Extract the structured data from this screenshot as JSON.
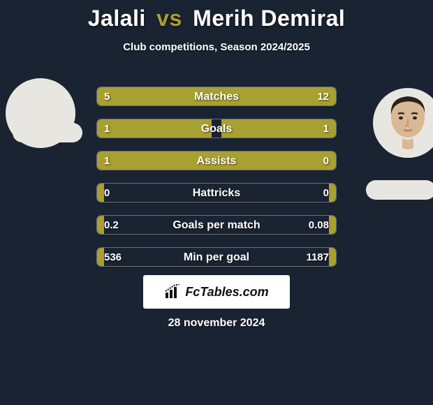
{
  "colors": {
    "background": "#1a2332",
    "accent": "#a8a030",
    "bar_border": "#6d6d6d",
    "text": "#ffffff",
    "brand_bg": "#ffffff",
    "brand_text": "#111111",
    "avatar_bg": "#e8e6e0"
  },
  "title": {
    "player1": "Jalali",
    "vs": "vs",
    "player2": "Merih Demiral"
  },
  "subtitle": "Club competitions, Season 2024/2025",
  "stats": [
    {
      "label": "Matches",
      "left_value": "5",
      "right_value": "12",
      "left_pct": 27,
      "right_pct": 73
    },
    {
      "label": "Goals",
      "left_value": "1",
      "right_value": "1",
      "left_pct": 48,
      "right_pct": 48
    },
    {
      "label": "Assists",
      "left_value": "1",
      "right_value": "0",
      "left_pct": 77,
      "right_pct": 23
    },
    {
      "label": "Hattricks",
      "left_value": "0",
      "right_value": "0",
      "left_pct": 3,
      "right_pct": 3
    },
    {
      "label": "Goals per match",
      "left_value": "0.2",
      "right_value": "0.08",
      "left_pct": 3,
      "right_pct": 3
    },
    {
      "label": "Min per goal",
      "left_value": "536",
      "right_value": "1187",
      "left_pct": 3,
      "right_pct": 3
    }
  ],
  "brand": {
    "label": "FcTables.com"
  },
  "date": "28 november 2024"
}
